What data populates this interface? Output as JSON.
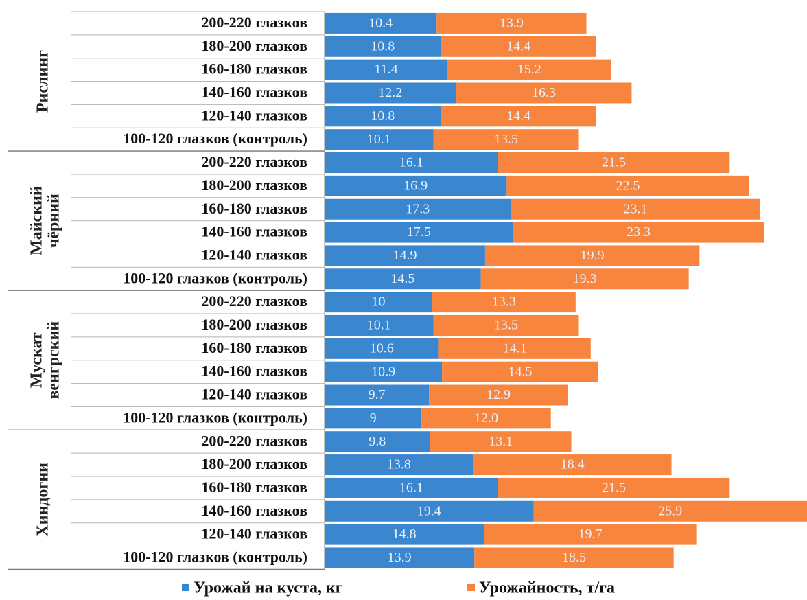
{
  "chart_data": {
    "type": "bar",
    "orientation": "horizontal",
    "stacked": true,
    "grid": false,
    "legend_position": "bottom",
    "groups": [
      {
        "name": "Рислинг",
        "categories": [
          "200-220 глазков",
          "180-200 глазков",
          "160-180 глазков",
          "140-160 глазков",
          "120-140 глазков",
          "100-120 глазков (контроль)"
        ]
      },
      {
        "name": "Майский чёрний",
        "categories": [
          "200-220 глазков",
          "180-200 глазков",
          "160-180 глазков",
          "140-160 глазков",
          "120-140 глазков",
          "100-120 глазков (контроль)"
        ]
      },
      {
        "name": "Мускат венгрский",
        "categories": [
          "200-220 глазков",
          "180-200 глазков",
          "160-180 глазков",
          "140-160 глазков",
          "120-140 глазков",
          "100-120 глазков (контроль)"
        ]
      },
      {
        "name": "Хиндогни",
        "categories": [
          "200-220 глазков",
          "180-200 глазков",
          "160-180 глазков",
          "140-160 глазков",
          "120-140 глазков",
          "100-120 глазков (контроль)"
        ]
      }
    ],
    "series": [
      {
        "name": "Урожай на куста, кг",
        "color": "#3a86cf",
        "values": [
          10.4,
          10.8,
          11.4,
          12.2,
          10.8,
          10.1,
          16.1,
          16.9,
          17.3,
          17.5,
          14.9,
          14.5,
          10,
          10.1,
          10.6,
          10.9,
          9.7,
          9,
          9.8,
          13.8,
          16.1,
          19.4,
          14.8,
          13.9
        ],
        "labels": [
          "10.4",
          "10.8",
          "11.4",
          "12.2",
          "10.8",
          "10.1",
          "16.1",
          "16.9",
          "17.3",
          "17.5",
          "14.9",
          "14.5",
          "10",
          "10.1",
          "10.6",
          "10.9",
          "9.7",
          "9",
          "9.8",
          "13.8",
          "16.1",
          "19.4",
          "14.8",
          "13.9"
        ]
      },
      {
        "name": "Урожайность, т/га",
        "color": "#f7853e",
        "values": [
          13.9,
          14.4,
          15.2,
          16.3,
          14.4,
          13.5,
          21.5,
          22.5,
          23.1,
          23.3,
          19.9,
          19.3,
          13.3,
          13.5,
          14.1,
          14.5,
          12.9,
          12.0,
          13.1,
          18.4,
          21.5,
          25.9,
          19.7,
          18.5
        ],
        "labels": [
          "13.9",
          "14.4",
          "15.2",
          "16.3",
          "14.4",
          "13.5",
          "21.5",
          "22.5",
          "23.1",
          "23.3",
          "19.9",
          "19.3",
          "13.3",
          "13.5",
          "14.1",
          "14.5",
          "12.9",
          "12.0",
          "13.1",
          "18.4",
          "21.5",
          "25.9",
          "19.7",
          "18.5"
        ]
      }
    ]
  }
}
